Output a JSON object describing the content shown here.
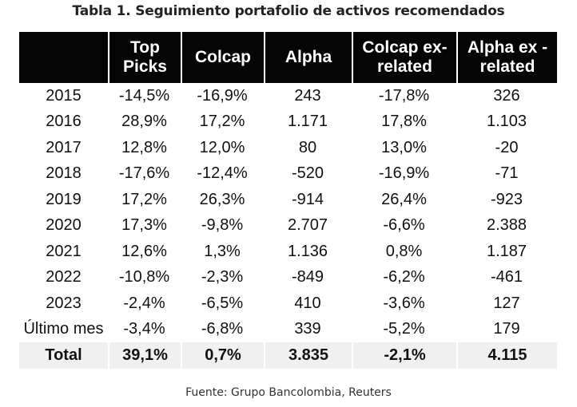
{
  "title": "Tabla 1. Seguimiento portafolio de activos recomendados",
  "columns": [
    "",
    "Top\nPicks",
    "Colcap",
    "Alpha",
    "Colcap ex-\nrelated",
    "Alpha ex -\nrelated"
  ],
  "rows": [
    [
      "2015",
      "-14,5%",
      "-16,9%",
      "243",
      "-17,8%",
      "326"
    ],
    [
      "2016",
      "28,9%",
      "17,2%",
      "1.171",
      "17,8%",
      "1.103"
    ],
    [
      "2017",
      "12,8%",
      "12,0%",
      "80",
      "13,0%",
      "-20"
    ],
    [
      "2018",
      "-17,6%",
      "-12,4%",
      "-520",
      "-16,9%",
      "-71"
    ],
    [
      "2019",
      "17,2%",
      "26,3%",
      "-914",
      "26,4%",
      "-923"
    ],
    [
      "2020",
      "17,3%",
      "-9,8%",
      "2.707",
      "-6,6%",
      "2.388"
    ],
    [
      "2021",
      "12,6%",
      "1,3%",
      "1.136",
      "0,8%",
      "1.187"
    ],
    [
      "2022",
      "-10,8%",
      "-2,3%",
      "-849",
      "-6,2%",
      "-461"
    ],
    [
      "2023",
      "-2,4%",
      "-6,5%",
      "410",
      "-3,6%",
      "127"
    ],
    [
      "Último mes",
      "-3,4%",
      "-6,8%",
      "339",
      "-5,2%",
      "179"
    ]
  ],
  "total": [
    "Total",
    "39,1%",
    "0,7%",
    "3.835",
    "-2,1%",
    "4.115"
  ],
  "source": "Fuente: Grupo Bancolombia, Reuters",
  "colors": {
    "header_bg": "#050505",
    "header_text": "#ffffff",
    "total_bg": "#f0f0f0"
  }
}
